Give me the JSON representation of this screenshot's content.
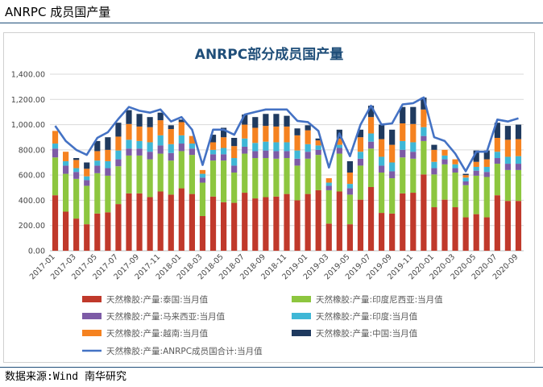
{
  "page": {
    "heading": "ANRPC 成员国产量",
    "source": "数据来源:Wind 南华研究"
  },
  "chart_data": {
    "type": "bar",
    "stacked": true,
    "title": "ANRPC部分成员国产量",
    "ylim": [
      0,
      1400
    ],
    "y_ticks": [
      "0.00",
      "200.00",
      "400.00",
      "600.00",
      "800.00",
      "1,000.00",
      "1,200.00",
      "1,400.00"
    ],
    "y_tick_values": [
      0,
      200,
      400,
      600,
      800,
      1000,
      1200,
      1400
    ],
    "grid": true,
    "legend_position": "bottom",
    "categories": [
      "2017-01",
      "2017-02",
      "2017-03",
      "2017-04",
      "2017-05",
      "2017-06",
      "2017-07",
      "2017-08",
      "2017-09",
      "2017-10",
      "2017-11",
      "2017-12",
      "2018-01",
      "2018-02",
      "2018-03",
      "2018-04",
      "2018-05",
      "2018-06",
      "2018-07",
      "2018-08",
      "2018-09",
      "2018-10",
      "2018-11",
      "2018-12",
      "2019-01",
      "2019-02",
      "2019-03",
      "2019-04",
      "2019-05",
      "2019-06",
      "2019-07",
      "2019-08",
      "2019-09",
      "2019-10",
      "2019-11",
      "2019-12",
      "2020-01",
      "2020-02",
      "2020-03",
      "2020-04",
      "2020-05",
      "2020-06",
      "2020-07",
      "2020-08",
      "2020-09"
    ],
    "x_tick_labels": [
      "2017-01",
      "2017-03",
      "2017-05",
      "2017-07",
      "2017-09",
      "2017-11",
      "2018-01",
      "2018-03",
      "2018-05",
      "2018-07",
      "2018-09",
      "2018-11",
      "2019-01",
      "2019-03",
      "2019-05",
      "2019-07",
      "2019-09",
      "2019-11",
      "2020-01",
      "2020-03",
      "2020-05",
      "2020-07",
      "2020-09"
    ],
    "series": [
      {
        "name": "天然橡胶:产量:泰国:当月值",
        "color": "#c0392b",
        "values": [
          440,
          310,
          255,
          210,
          295,
          305,
          370,
          455,
          455,
          425,
          470,
          445,
          495,
          450,
          275,
          430,
          385,
          380,
          460,
          415,
          425,
          430,
          450,
          400,
          450,
          480,
          215,
          470,
          210,
          405,
          505,
          300,
          295,
          455,
          460,
          605,
          345,
          405,
          345,
          265,
          290,
          265,
          440,
          395,
          395
        ]
      },
      {
        "name": "天然橡胶:产量:印度尼西亚:当月值",
        "color": "#8dc63f",
        "values": [
          300,
          300,
          315,
          305,
          320,
          290,
          300,
          300,
          300,
          300,
          300,
          270,
          295,
          310,
          265,
          285,
          330,
          240,
          310,
          320,
          310,
          300,
          285,
          275,
          280,
          280,
          265,
          300,
          235,
          270,
          305,
          320,
          280,
          285,
          270,
          265,
          260,
          280,
          275,
          255,
          305,
          320,
          250,
          245,
          245
        ]
      },
      {
        "name": "天然橡胶:产量:马来西亚:当月值",
        "color": "#7d5ba6",
        "values": [
          70,
          65,
          55,
          45,
          60,
          60,
          55,
          55,
          55,
          60,
          65,
          60,
          60,
          50,
          40,
          50,
          50,
          55,
          55,
          55,
          60,
          60,
          55,
          55,
          55,
          40,
          35,
          45,
          50,
          55,
          55,
          55,
          55,
          60,
          55,
          40,
          50,
          40,
          35,
          30,
          40,
          40,
          45,
          50,
          50
        ]
      },
      {
        "name": "天然橡胶:产量:印度:当月值",
        "color": "#3fb7d6",
        "values": [
          40,
          35,
          30,
          30,
          40,
          55,
          70,
          70,
          60,
          75,
          80,
          70,
          65,
          40,
          30,
          35,
          50,
          60,
          65,
          65,
          70,
          70,
          70,
          65,
          60,
          35,
          25,
          25,
          35,
          55,
          65,
          70,
          70,
          70,
          75,
          70,
          50,
          30,
          30,
          30,
          30,
          40,
          50,
          55,
          60
        ]
      },
      {
        "name": "天然橡胶:产量:越南:当月值",
        "color": "#f58220",
        "values": [
          100,
          75,
          65,
          60,
          75,
          90,
          110,
          125,
          115,
          120,
          120,
          120,
          105,
          60,
          30,
          60,
          85,
          95,
          110,
          120,
          125,
          125,
          125,
          120,
          110,
          40,
          35,
          50,
          90,
          115,
          130,
          140,
          140,
          140,
          145,
          140,
          95,
          45,
          40,
          20,
          40,
          60,
          110,
          135,
          135
        ]
      },
      {
        "name": "天然橡胶:产量:中国:当月值",
        "color": "#1f3a5f",
        "values": [
          0,
          0,
          15,
          50,
          80,
          100,
          110,
          110,
          100,
          80,
          60,
          30,
          20,
          0,
          0,
          60,
          75,
          65,
          80,
          85,
          95,
          100,
          85,
          55,
          40,
          15,
          0,
          70,
          90,
          60,
          90,
          115,
          120,
          130,
          135,
          95,
          40,
          0,
          0,
          10,
          90,
          70,
          120,
          110,
          115
        ]
      },
      {
        "name": "天然橡胶:产量:ANRPC成员国合计:当月值",
        "color": "#4472c4",
        "kind": "line",
        "values": [
          990,
          870,
          800,
          760,
          895,
          940,
          1045,
          1140,
          1110,
          1095,
          1120,
          1025,
          1060,
          960,
          680,
          960,
          960,
          920,
          1080,
          1100,
          1120,
          1120,
          1120,
          1030,
          1020,
          950,
          660,
          930,
          750,
          1000,
          1150,
          1000,
          1010,
          1160,
          1170,
          1215,
          900,
          870,
          770,
          630,
          785,
          785,
          1040,
          1025,
          1050
        ]
      }
    ]
  }
}
